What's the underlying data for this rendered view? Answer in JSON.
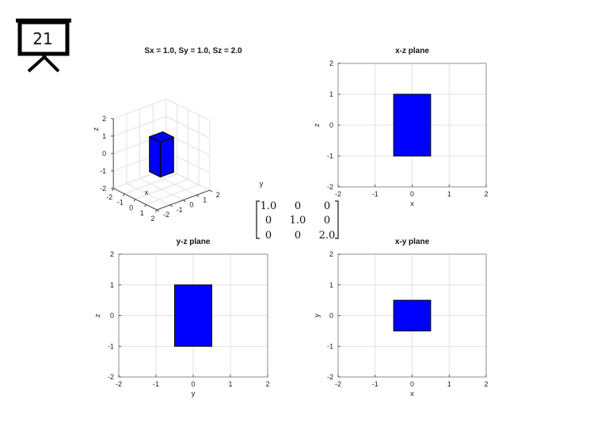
{
  "slide": {
    "number": "21",
    "icon": "presentation-board-icon"
  },
  "colors": {
    "fill": "#0000ff",
    "edge": "#000000",
    "grid": "#e1e1e1",
    "highlight": "#e00000"
  },
  "matrix": {
    "rows": [
      [
        "1.0",
        "0",
        "0"
      ],
      [
        "0",
        "1.0",
        "0"
      ],
      [
        "0",
        "0",
        "2.0"
      ]
    ],
    "highlight_cell": [
      2,
      2
    ]
  },
  "chart_data": [
    {
      "type": "3d-box",
      "title": "Sx = 1.0, Sy = 1.0, Sz = 2.0",
      "xlabel": "x",
      "ylabel": "y",
      "zlabel": "z",
      "xlim": [
        -2,
        2
      ],
      "ylim": [
        -2,
        2
      ],
      "zlim": [
        -2,
        2
      ],
      "xticks": [
        -2,
        -1,
        0,
        1,
        2
      ],
      "yticks": [
        -2,
        -1,
        0,
        1,
        2
      ],
      "zticks": [
        -2,
        -1,
        0,
        1,
        2
      ],
      "box": {
        "x": [
          -0.5,
          0.5
        ],
        "y": [
          -0.5,
          0.5
        ],
        "z": [
          -1,
          1
        ]
      }
    },
    {
      "type": "rectangle",
      "title": "x-z plane",
      "xlabel": "x",
      "ylabel": "z",
      "xlim": [
        -2,
        2
      ],
      "ylim": [
        -2,
        2
      ],
      "ticks": [
        -2,
        -1,
        0,
        1,
        2
      ],
      "rect": {
        "x": [
          -0.5,
          0.5
        ],
        "y": [
          -1,
          1
        ]
      }
    },
    {
      "type": "rectangle",
      "title": "y-z plane",
      "xlabel": "y",
      "ylabel": "z",
      "xlim": [
        -2,
        2
      ],
      "ylim": [
        -2,
        2
      ],
      "ticks": [
        -2,
        -1,
        0,
        1,
        2
      ],
      "rect": {
        "x": [
          -0.5,
          0.5
        ],
        "y": [
          -1,
          1
        ]
      }
    },
    {
      "type": "rectangle",
      "title": "x-y plane",
      "xlabel": "x",
      "ylabel": "y",
      "xlim": [
        -2,
        2
      ],
      "ylim": [
        -2,
        2
      ],
      "ticks": [
        -2,
        -1,
        0,
        1,
        2
      ],
      "rect": {
        "x": [
          -0.5,
          0.5
        ],
        "y": [
          -0.5,
          0.5
        ]
      }
    }
  ]
}
